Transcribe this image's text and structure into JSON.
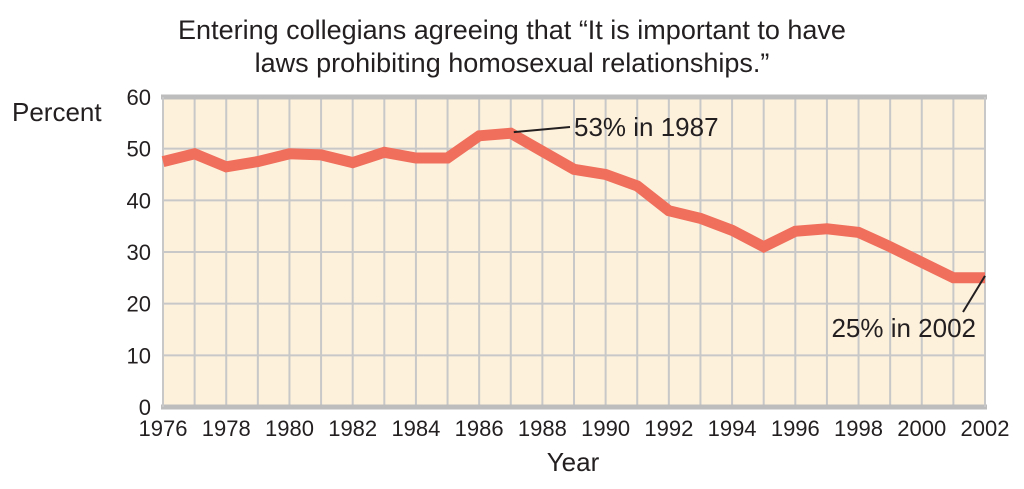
{
  "chart_data": {
    "type": "line",
    "title_line1": "Entering collegians agreeing that “It is important to have",
    "title_line2": "laws prohibiting homosexual relationships.”",
    "xlabel": "Year",
    "ylabel": "Percent",
    "xlim": [
      1976,
      2002
    ],
    "ylim": [
      0,
      60
    ],
    "x_ticks": [
      1976,
      1978,
      1980,
      1982,
      1984,
      1986,
      1988,
      1990,
      1992,
      1994,
      1996,
      1998,
      2000,
      2002
    ],
    "y_ticks": [
      0,
      10,
      20,
      30,
      40,
      50,
      60
    ],
    "grid": true,
    "series": [
      {
        "x": [
          1976,
          1977,
          1978,
          1979,
          1980,
          1981,
          1982,
          1983,
          1984,
          1985,
          1986,
          1987,
          1988,
          1989,
          1990,
          1991,
          1992,
          1993,
          1994,
          1995,
          1996,
          1997,
          1998,
          1999,
          2000,
          2001,
          2002
        ],
        "values": [
          47.5,
          49,
          46.5,
          47.5,
          49,
          48.8,
          47.3,
          49.3,
          48.2,
          48.2,
          52.5,
          53,
          49.5,
          46,
          45,
          42.8,
          38,
          36.5,
          34.2,
          31,
          34,
          34.5,
          33.8,
          31,
          28,
          25,
          25
        ]
      }
    ],
    "annotations": [
      {
        "text": "53% in 1987",
        "x": 1987,
        "y": 53
      },
      {
        "text": "25% in 2002",
        "x": 2002,
        "y": 25
      }
    ],
    "colors": {
      "line": "#ef6f5c",
      "plot_bg": "#fdf1dc",
      "grid": "#c8c8c8",
      "frame": "#bdbdbd",
      "text": "#231f20"
    }
  }
}
